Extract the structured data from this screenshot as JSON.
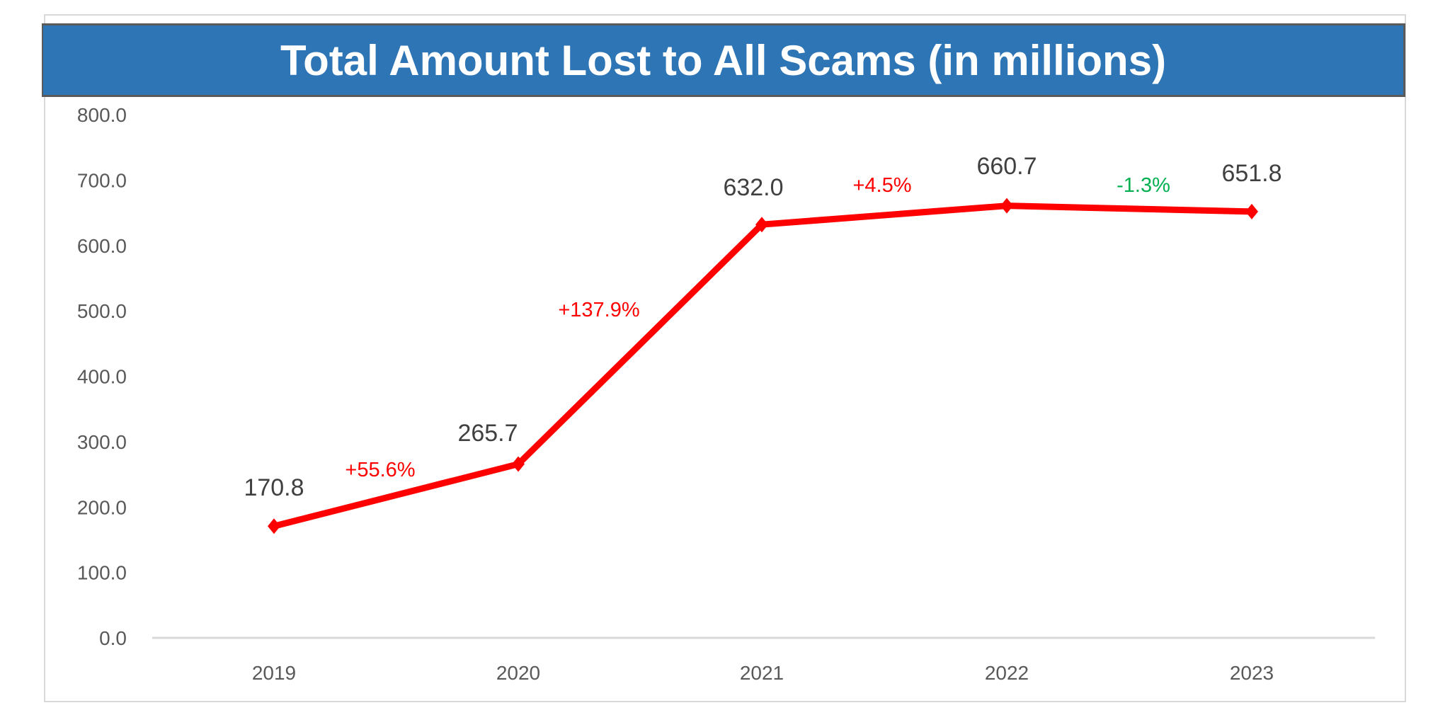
{
  "chart_data": {
    "type": "line",
    "title": "Total Amount Lost to All Scams (in millions)",
    "xlabel": "",
    "ylabel": "",
    "categories": [
      "2019",
      "2020",
      "2021",
      "2022",
      "2023"
    ],
    "values": [
      170.8,
      265.7,
      632.0,
      660.7,
      651.8
    ],
    "value_labels": [
      "170.8",
      "265.7",
      "632.0",
      "660.7",
      "651.8"
    ],
    "change_labels": [
      "+55.6%",
      "+137.9%",
      "+4.5%",
      "-1.3%"
    ],
    "change_colors": [
      "#ff0000",
      "#ff0000",
      "#ff0000",
      "#00b050"
    ],
    "ylim": [
      0,
      800
    ],
    "yticks": [
      "0.0",
      "100.0",
      "200.0",
      "300.0",
      "400.0",
      "500.0",
      "600.0",
      "700.0",
      "800.0"
    ],
    "grid": false,
    "legend": "none",
    "line_color": "#ff0000",
    "title_background": "#2e75b6"
  }
}
